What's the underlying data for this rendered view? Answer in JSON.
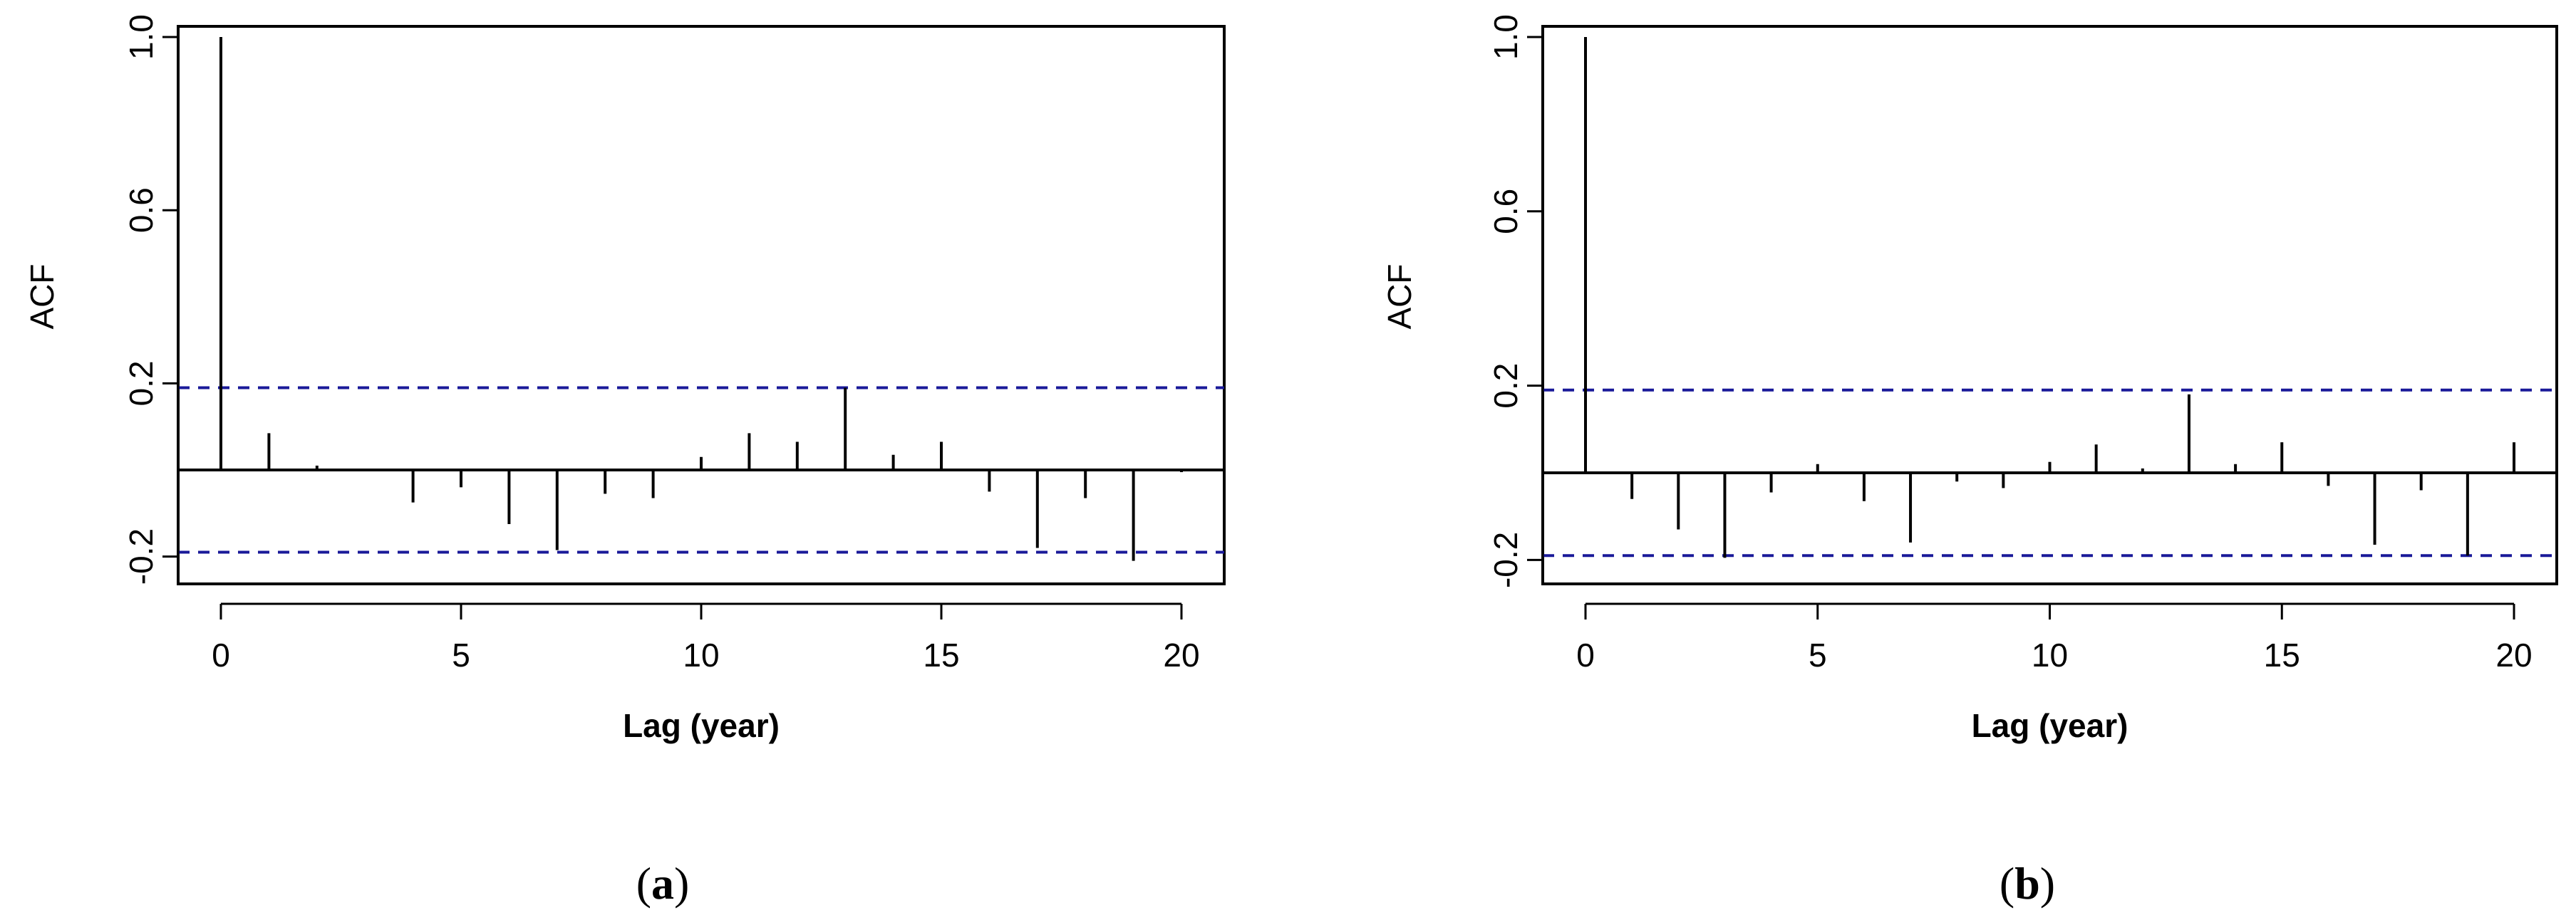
{
  "chart_data": [
    {
      "type": "bar",
      "caption": "a",
      "xlabel": "Lag (year)",
      "ylabel": "ACF",
      "xlim": [
        0,
        20
      ],
      "ylim": [
        -0.2,
        1.0
      ],
      "xticks": [
        0,
        5,
        10,
        15,
        20
      ],
      "yticks": [
        -0.2,
        0.2,
        0.6,
        1.0
      ],
      "confidence_band": [
        0.19,
        -0.19
      ],
      "x": [
        0,
        1,
        2,
        3,
        4,
        5,
        6,
        7,
        8,
        9,
        10,
        11,
        12,
        13,
        14,
        15,
        16,
        17,
        18,
        19,
        20
      ],
      "values": [
        1.0,
        0.085,
        0.01,
        0.0,
        -0.075,
        -0.04,
        -0.125,
        -0.185,
        -0.055,
        -0.065,
        0.03,
        0.085,
        0.065,
        0.19,
        0.035,
        0.065,
        -0.05,
        -0.18,
        -0.065,
        -0.21,
        -0.005
      ],
      "grid": false,
      "colors": {
        "band": "#1a1a99",
        "bars": "#000000"
      }
    },
    {
      "type": "bar",
      "caption": "b",
      "xlabel": "Lag (year)",
      "ylabel": "ACF",
      "xlim": [
        0,
        20
      ],
      "ylim": [
        -0.2,
        1.0
      ],
      "xticks": [
        0,
        5,
        10,
        15,
        20
      ],
      "yticks": [
        -0.2,
        0.2,
        0.6,
        1.0
      ],
      "confidence_band": [
        0.19,
        -0.19
      ],
      "x": [
        0,
        1,
        2,
        3,
        4,
        5,
        6,
        7,
        8,
        9,
        10,
        11,
        12,
        13,
        14,
        15,
        16,
        17,
        18,
        19,
        20
      ],
      "values": [
        1.0,
        -0.06,
        -0.13,
        -0.195,
        -0.045,
        0.02,
        -0.065,
        -0.16,
        -0.02,
        -0.035,
        0.025,
        0.065,
        0.01,
        0.18,
        0.02,
        0.07,
        -0.03,
        -0.165,
        -0.04,
        -0.19,
        0.07
      ],
      "grid": false,
      "colors": {
        "band": "#1a1a99",
        "bars": "#000000"
      }
    }
  ]
}
